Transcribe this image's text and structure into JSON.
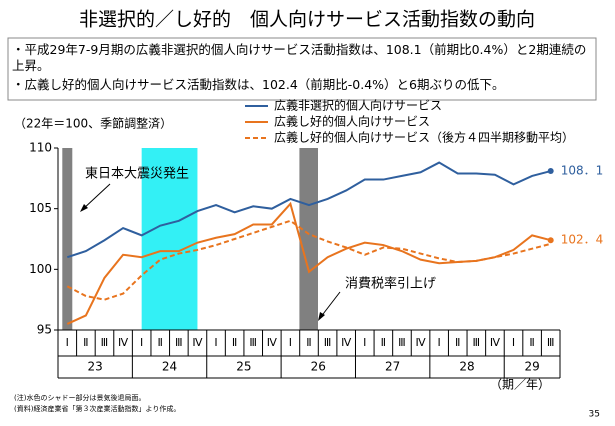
{
  "title": "非選択的／し好的　個人向けサービス活動指数の動向",
  "bullets": [
    "・平成29年7-9月期の広義非選択的個人向けサービス活動指数は、108.1（前期比0.4%）と2期連続の上昇。",
    "・広義し好的個人向けサービス活動指数は、102.4（前期比-0.4%）と6期ぶりの低下。"
  ],
  "chart_data": {
    "type": "line",
    "subtitle": "（22年＝100、季節調整済）",
    "categories": [
      "Ⅰ",
      "Ⅱ",
      "Ⅲ",
      "Ⅳ",
      "Ⅰ",
      "Ⅱ",
      "Ⅲ",
      "Ⅳ",
      "Ⅰ",
      "Ⅱ",
      "Ⅲ",
      "Ⅳ",
      "Ⅰ",
      "Ⅱ",
      "Ⅲ",
      "Ⅳ",
      "Ⅰ",
      "Ⅱ",
      "Ⅲ",
      "Ⅳ",
      "Ⅰ",
      "Ⅱ",
      "Ⅲ",
      "Ⅳ",
      "Ⅰ",
      "Ⅱ",
      "Ⅲ"
    ],
    "x_groups": [
      "23",
      "24",
      "25",
      "26",
      "27",
      "28",
      "29"
    ],
    "x_label": "（期／年）",
    "ylim": [
      95,
      110
    ],
    "yticks": [
      95,
      100,
      105,
      110
    ],
    "grid": false,
    "series": [
      {
        "name": "広義非選択的個人向けサービス",
        "color": "#2f5f9e",
        "style": "solid",
        "values": [
          101.0,
          101.5,
          102.4,
          103.4,
          102.8,
          103.6,
          104.0,
          104.8,
          105.3,
          104.7,
          105.2,
          105.0,
          105.8,
          105.3,
          105.8,
          106.5,
          107.4,
          107.4,
          107.7,
          108.0,
          108.8,
          107.9,
          107.9,
          107.8,
          107.0,
          107.7,
          108.1
        ],
        "value_labels": [
          null,
          null,
          null,
          null,
          null,
          null,
          null,
          null,
          null,
          null,
          null,
          null,
          null,
          null,
          null,
          null,
          null,
          null,
          null,
          null,
          null,
          null,
          null,
          null,
          null,
          null,
          "108．1"
        ]
      },
      {
        "name": "広義し好的個人向けサービス",
        "color": "#e8741e",
        "style": "solid",
        "values": [
          95.5,
          96.2,
          99.3,
          101.2,
          101.0,
          101.5,
          101.5,
          102.2,
          102.6,
          102.9,
          103.7,
          103.7,
          105.4,
          99.8,
          101.0,
          101.7,
          102.2,
          102.0,
          101.5,
          100.8,
          100.5,
          100.6,
          100.7,
          101.0,
          101.6,
          102.8,
          102.4
        ],
        "value_labels": [
          null,
          null,
          null,
          null,
          null,
          null,
          null,
          null,
          null,
          null,
          null,
          null,
          null,
          null,
          null,
          null,
          null,
          null,
          null,
          null,
          null,
          null,
          null,
          null,
          null,
          null,
          "102．4"
        ]
      },
      {
        "name": "広義し好的個人向けサービス（後方４四半期移動平均）",
        "color": "#e8741e",
        "style": "dashed",
        "values": [
          98.6,
          97.8,
          97.5,
          98.0,
          99.5,
          100.8,
          101.3,
          101.6,
          102.0,
          102.5,
          103.0,
          103.5,
          104.0,
          102.9,
          102.3,
          101.8,
          101.2,
          101.8,
          101.7,
          101.3,
          100.9,
          100.6,
          100.7,
          101.0,
          101.3,
          101.7,
          102.1
        ]
      }
    ],
    "annotations": [
      "東日本大震災発生",
      "消費税率引上げ"
    ]
  },
  "notes": [
    "(注)水色のシャドー部分は景気後退局面。",
    "(資料)経済産業省「第３次産業活動指数」より作成。"
  ],
  "page_number": "35"
}
